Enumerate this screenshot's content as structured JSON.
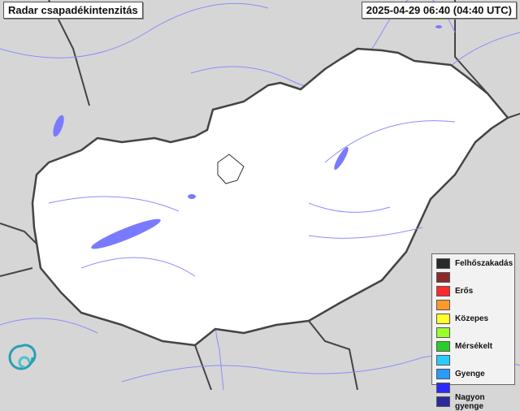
{
  "header": {
    "title": "Radar csapadékintenzitás",
    "timestamp": "2025-04-29 06:40 (04:40 UTC)"
  },
  "legend": {
    "items": [
      {
        "label": "Felhőszakadás",
        "color": "#2a2a2a"
      },
      {
        "label": "",
        "color": "#8b2a2a"
      },
      {
        "label": "Erős",
        "color": "#ff2a2a"
      },
      {
        "label": "",
        "color": "#ff9a2a"
      },
      {
        "label": "Közepes",
        "color": "#ffff2a"
      },
      {
        "label": "",
        "color": "#9aff2a"
      },
      {
        "label": "Mérsékelt",
        "color": "#2acc2a"
      },
      {
        "label": "",
        "color": "#2accff"
      },
      {
        "label": "Gyenge",
        "color": "#2a9aff"
      },
      {
        "label": "",
        "color": "#2a2aff"
      },
      {
        "label": "Nagyon gyenge",
        "color": "#2a2a9a"
      }
    ]
  },
  "colors": {
    "country_fill": "#ffffff",
    "surroundings": "#d6d6d6",
    "border": "#444444",
    "water": "#7a7aff"
  },
  "icons": {
    "logo": "omsz-spiral-logo"
  }
}
